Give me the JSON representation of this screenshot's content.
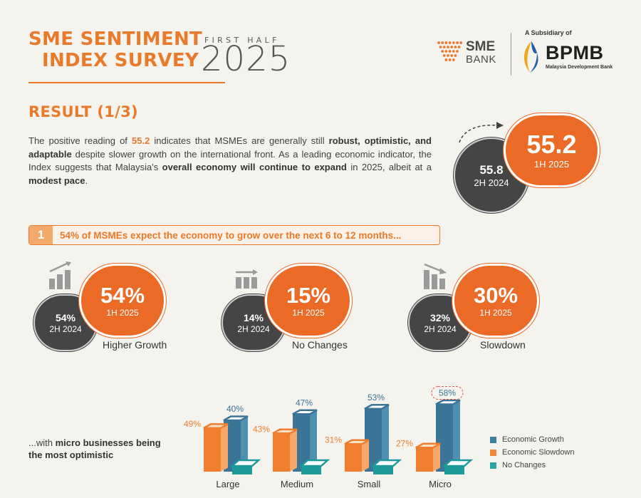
{
  "header": {
    "title_line1": "SME SENTIMENT",
    "title_line2": "INDEX SURVEY",
    "half_label": "FIRST HALF",
    "year": "2025"
  },
  "logos": {
    "sme_line1": "SME",
    "sme_line2": "BANK",
    "subsidiary": "A Subsidiary of",
    "bpmb": "BPMB",
    "bpmb_sub": "Malaysia Development Bank"
  },
  "result": {
    "title": "RESULT (1/3)",
    "para": [
      {
        "t": "The positive reading of ",
        "s": "n"
      },
      {
        "t": "55.2",
        "s": "hl"
      },
      {
        "t": " indicates that MSMEs are generally still ",
        "s": "n"
      },
      {
        "t": "robust, optimistic, and adaptable",
        "s": "b"
      },
      {
        "t": " despite slower growth on the international front. As a leading economic indicator, the Index suggests that Malaysia's ",
        "s": "n"
      },
      {
        "t": "overall economy will continue to expand",
        "s": "b"
      },
      {
        "t": " in 2025, albeit at a ",
        "s": "n"
      },
      {
        "t": "modest pace",
        "s": "b"
      },
      {
        "t": ".",
        "s": "n"
      }
    ],
    "current": {
      "value": "55.2",
      "label": "1H 2025"
    },
    "previous": {
      "value": "55.8",
      "label": "2H 2024"
    }
  },
  "section1": {
    "number": "1",
    "text": "54% of MSMEs expect the economy to grow over the next 6 to 12 months..."
  },
  "indicators": [
    {
      "icon": "growth-chart-icon",
      "current": "54%",
      "current_label": "1H 2025",
      "previous": "54%",
      "previous_label": "2H 2024",
      "label": "Higher Growth"
    },
    {
      "icon": "flat-chart-icon",
      "current": "15%",
      "current_label": "1H 2025",
      "previous": "14%",
      "previous_label": "2H 2024",
      "label": "No Changes"
    },
    {
      "icon": "decline-chart-icon",
      "current": "30%",
      "current_label": "1H 2025",
      "previous": "32%",
      "previous_label": "2H 2024",
      "label": "Slowdown"
    }
  ],
  "micro_text": {
    "pre": "...with ",
    "bold1": "micro businesses being",
    "bold2": "the most optimistic"
  },
  "chart_data": {
    "type": "bar",
    "title": "",
    "categories": [
      "Large",
      "Medium",
      "Small",
      "Micro"
    ],
    "series": [
      {
        "name": "Economic Growth",
        "color": "#3d7d9e",
        "values": [
          40,
          47,
          53,
          58
        ]
      },
      {
        "name": "Economic Slowdown",
        "color": "#f0883a",
        "values": [
          49,
          43,
          31,
          27
        ]
      },
      {
        "name": "No Changes",
        "color": "#2aa3a3",
        "values": [
          null,
          null,
          null,
          null
        ]
      }
    ],
    "highlight": {
      "category": "Micro",
      "series": "Economic Growth"
    },
    "legend_position": "right",
    "grid": false
  }
}
